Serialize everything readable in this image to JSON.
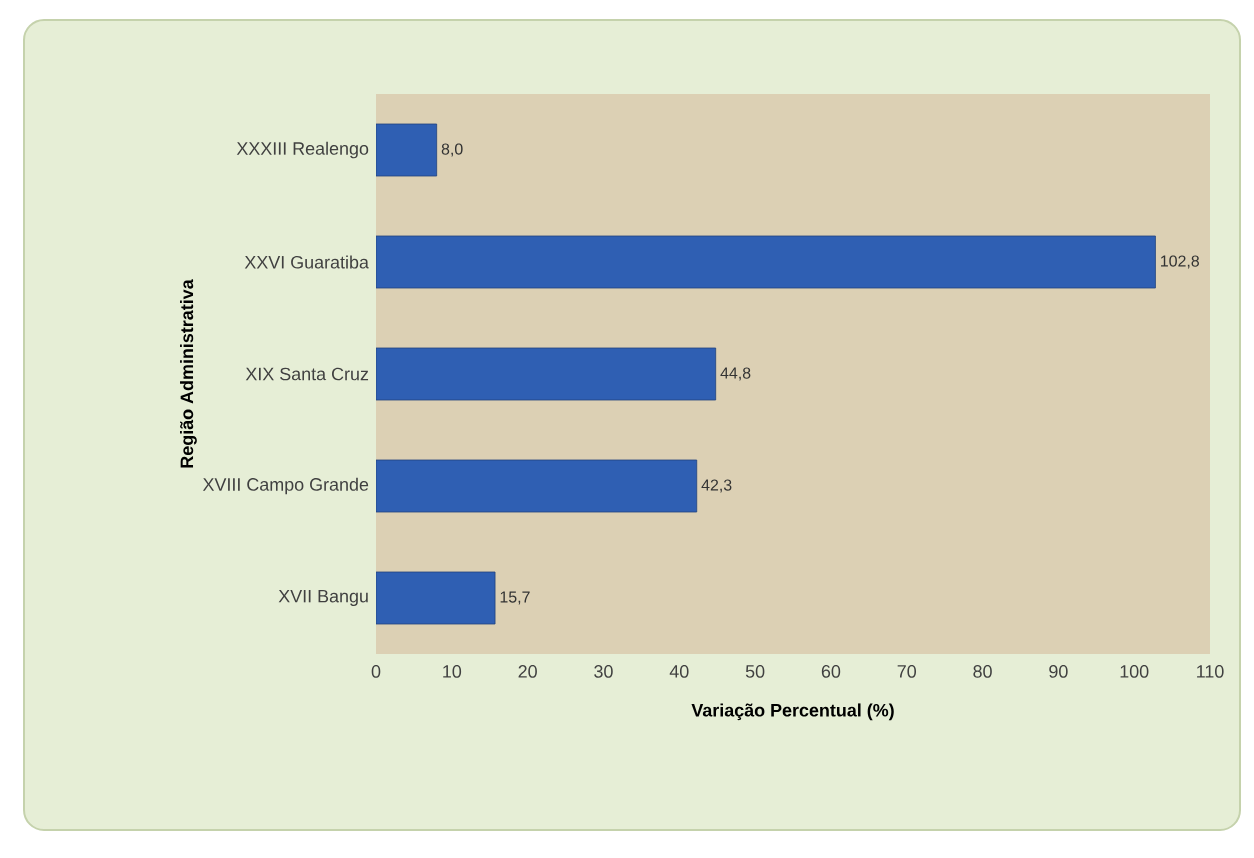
{
  "chart_data": {
    "type": "bar",
    "orientation": "horizontal",
    "xlabel": "Variação Percentual (%)",
    "ylabel": "Região Administrativa",
    "categories": [
      "XXXIII Realengo",
      "XXVI Guaratiba",
      "XIX Santa Cruz",
      "XVIII Campo Grande",
      "XVII Bangu"
    ],
    "values": [
      8.0,
      102.8,
      44.8,
      42.3,
      15.7
    ],
    "value_labels": [
      "8,0",
      "102,8",
      "44,8",
      "42,3",
      "15,7"
    ],
    "color": "#2f5fb3",
    "xlim": [
      0,
      110
    ],
    "xticks": [
      0,
      10,
      20,
      30,
      40,
      50,
      60,
      70,
      80,
      90,
      100,
      110
    ]
  }
}
